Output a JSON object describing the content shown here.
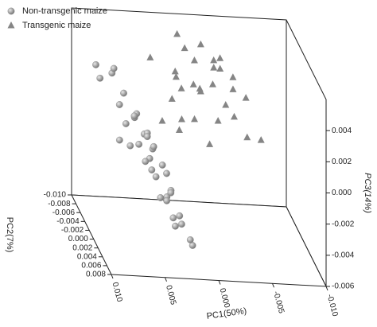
{
  "chart_data": {
    "type": "scatter3d",
    "xlabel": "PC1(50%)",
    "ylabel": "PC2(7%)",
    "zlabel": "PC3(14%)",
    "xlim": [
      0.01,
      -0.01
    ],
    "ylim": [
      -0.01,
      0.008
    ],
    "zlim": [
      -0.006,
      0.006
    ],
    "xticks": [
      {
        "value": 0.01,
        "label": "0.010"
      },
      {
        "value": 0.005,
        "label": "0.005"
      },
      {
        "value": 0,
        "label": "0.000"
      },
      {
        "value": -0.005,
        "label": "-0.005"
      },
      {
        "value": -0.01,
        "label": "-0.010"
      }
    ],
    "yticks": [
      {
        "value": -0.01,
        "label": "-0.010"
      },
      {
        "value": -0.008,
        "label": "-0.008"
      },
      {
        "value": -0.006,
        "label": "-0.006"
      },
      {
        "value": -0.004,
        "label": "-0.004"
      },
      {
        "value": -0.002,
        "label": "-0.002"
      },
      {
        "value": 0,
        "label": "0.000"
      },
      {
        "value": 0.002,
        "label": "0.002"
      },
      {
        "value": 0.004,
        "label": "0.004"
      },
      {
        "value": 0.006,
        "label": "0.006"
      },
      {
        "value": 0.008,
        "label": "0.008"
      }
    ],
    "zticks": [
      {
        "value": -0.006,
        "label": "-0.006"
      },
      {
        "value": -0.004,
        "label": "-0.004"
      },
      {
        "value": -0.002,
        "label": "-0.002"
      },
      {
        "value": 0,
        "label": "0.000"
      },
      {
        "value": 0.002,
        "label": "0.002"
      },
      {
        "value": 0.004,
        "label": "0.004"
      }
    ],
    "legend": "upper left",
    "series": [
      {
        "name": "Non-transgenic maize",
        "color": "#8f8f8f",
        "marker": "circle",
        "x": [
          0.0098,
          0.0085,
          0.009,
          0.0078,
          0.007,
          0.0066,
          0.006,
          0.0072,
          0.0058,
          0.0055,
          0.005,
          0.0062,
          0.0048,
          0.0054,
          0.0045,
          0.0068,
          0.004,
          0.005,
          0.0036,
          0.0044,
          0.003,
          0.0038,
          0.0028,
          0.0034,
          0.0024,
          0.003,
          0.002,
          0.0026,
          0.0016,
          0.0012,
          0.001,
          0.008,
          0.0075,
          0.0046,
          0.0058
        ],
        "y": [
          0,
          0.001,
          -0.002,
          0.001,
          -0.001,
          0.002,
          0,
          0.001,
          -0.002,
          0.001,
          0,
          0.002,
          -0.001,
          0.003,
          0,
          0.001,
          -0.002,
          0.002,
          0,
          0.001,
          -0.001,
          0.003,
          0,
          0.001,
          -0.002,
          0.002,
          0,
          0.001,
          -0.001,
          0.002,
          0,
          0.002,
          -0.003,
          0.004,
          0.003
        ],
        "z": [
          0.0052,
          0.005,
          0.0038,
          0.003,
          0.0032,
          0.0025,
          0.0022,
          0.0018,
          0.0015,
          0.0012,
          0.001,
          0.0008,
          0.0005,
          0.0002,
          0,
          0.0004,
          -0.0004,
          -0.0008,
          -0.001,
          -0.0015,
          -0.0018,
          -0.0022,
          -0.0026,
          -0.003,
          -0.0033,
          -0.0038,
          -0.0042,
          -0.0046,
          -0.005,
          -0.0055,
          -0.0057,
          0.001,
          0.0042,
          -0.002,
          0
        ]
      },
      {
        "name": "Transgenic maize",
        "color": "#858585",
        "marker": "triangle",
        "x": [
          0.001,
          -0.001,
          0,
          -0.002,
          0.002,
          -0.003,
          0.0005,
          -0.0015,
          0.0015,
          -0.004,
          -0.0005,
          0.0025,
          -0.0025,
          0.0008,
          -0.005,
          -0.0012,
          0.0018,
          -0.0035,
          0.0002,
          -0.0022,
          0.003,
          -0.0045,
          -0.0008,
          0.0012,
          -0.006,
          -0.0028,
          0.0035,
          -0.0018,
          0.0005,
          -0.0038
        ],
        "y": [
          -0.006,
          -0.005,
          -0.003,
          -0.004,
          -0.002,
          -0.006,
          -0.001,
          -0.002,
          -0.004,
          -0.005,
          -0.003,
          -0.001,
          -0.001,
          -0.005,
          -0.004,
          -0.006,
          0,
          -0.002,
          -0.002,
          -0.003,
          -0.003,
          -0.001,
          0,
          -0.004,
          -0.002,
          -0.005,
          -0.006,
          -0.003,
          -0.005,
          -0.004
        ],
        "z": [
          0.0058,
          0.0055,
          0.005,
          0.0048,
          0.0045,
          0.0044,
          0.004,
          0.0038,
          0.0036,
          0.0035,
          0.0032,
          0.003,
          0.0028,
          0.0026,
          0.0025,
          0.0022,
          0.002,
          0.0018,
          0.0015,
          0.0012,
          0.001,
          0.0008,
          0.0005,
          0.0002,
          0.0004,
          0.004,
          0.0042,
          0.0046,
          0.0052,
          0.003
        ]
      }
    ]
  }
}
